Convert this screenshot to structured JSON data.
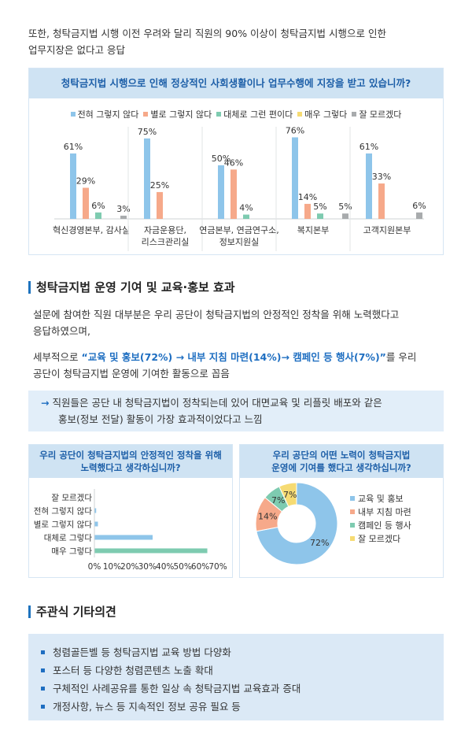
{
  "intro": {
    "line1": "또한, 청탁금지법 시행 이전 우려와 달리 직원의 90% 이상이 청탁금지법 시행으로 인한",
    "line2": "업무지장은 없다고 응답"
  },
  "colors": {
    "blue": "#8ec5ea",
    "orange": "#f6a98a",
    "green": "#7ecbb0",
    "yellow": "#f6db73",
    "gray": "#a8abad",
    "accent": "#1e6ec1",
    "box_title_bg": "#cfe3f3"
  },
  "chart1": {
    "chart_data": {
      "type": "bar",
      "title": "청탁금지법 시행으로 인해 정상적인 사회생활이나 업무수행에 지장을 받고 있습니까?",
      "categories": [
        "혁신경영본부, 감사실",
        "자금운용단,\n리스크관리실",
        "연금본부, 연금연구소,\n정보지원실",
        "복지본부",
        "고객지원본부"
      ],
      "series": [
        {
          "name": "전혀 그렇지 않다",
          "values": [
            61,
            75,
            50,
            76,
            61
          ],
          "labels": [
            "61%",
            "75%",
            "50%",
            "76%",
            "61%"
          ]
        },
        {
          "name": "별로 그렇지 않다",
          "values": [
            29,
            25,
            46,
            14,
            33
          ],
          "labels": [
            "29%",
            "25%",
            "46%",
            "14%",
            "33%"
          ]
        },
        {
          "name": "대체로 그런 편이다",
          "values": [
            6,
            0,
            4,
            5,
            0
          ],
          "labels": [
            "6%",
            "",
            "4%",
            "5%",
            ""
          ]
        },
        {
          "name": "매우 그렇다",
          "values": [
            0,
            0,
            0,
            0,
            0
          ],
          "labels": [
            "",
            "",
            "",
            "",
            ""
          ]
        },
        {
          "name": "잘 모르겠다",
          "values": [
            3,
            0,
            0,
            5,
            6
          ],
          "labels": [
            "3%",
            "",
            "",
            "5%",
            "6%"
          ]
        }
      ],
      "ylim": [
        0,
        80
      ]
    }
  },
  "section2": {
    "title": "청탁금지법 운영 기여 및 교육·홍보 효과",
    "para1_line1": "설문에 참여한 직원 대부분은 우리 공단이 청탁금지법의 안정적인 정착을 위해 노력했다고",
    "para1_line2": "응답하였으며,",
    "para2_prefix": "세부적으로 ",
    "para2_highlight": "“교육 및 홍보(72%) → 내부 지침 마련(14%)→ 캠페인 등 행사(7%)”",
    "para2_suffix": "를 우리",
    "para2_line2": "공단이 청탁금지법 운영에 기여한 활동으로 꼽음",
    "callout_arrow": "→",
    "callout_line1": "직원들은 공단 내 청탁금지법이 정착되는데 있어 대면교육 및 리플릿 배포와 같은",
    "callout_line2": "홍보(정보 전달) 활동이 가장 효과적이었다고 느낌"
  },
  "chart2": {
    "title_line1": "우리 공단이 청탁금지법의 안정적인 정착을 위해",
    "title_line2": "노력했다고 생각하십니까?",
    "chart_data": {
      "type": "bar",
      "orientation": "horizontal",
      "categories": [
        "잘 모르겠다",
        "전혀 그렇지 않다",
        "별로 그렇지 않다",
        "대체로 그렇다",
        "매우 그렇다"
      ],
      "values": [
        0,
        1,
        2,
        33,
        64
      ],
      "xlim": [
        0,
        70
      ],
      "xticks": [
        "0%",
        "10%",
        "20%",
        "30%",
        "40%",
        "50%",
        "60%",
        "70%"
      ]
    }
  },
  "chart3": {
    "title_line1": "우리 공단의 어떤 노력이 청탁금지법",
    "title_line2": "운영에 기여를 했다고 생각하십니까?",
    "chart_data": {
      "type": "pie",
      "donut": true,
      "labels": [
        "교육 및 홍보",
        "내부 지침 마련",
        "캠페인 등 행사",
        "잘 모르겠다"
      ],
      "values": [
        72,
        14,
        7,
        7
      ],
      "value_labels": [
        "72%",
        "14%",
        "7%",
        "7%"
      ]
    }
  },
  "section3": {
    "title": "주관식 기타의견",
    "items": [
      "청렴골든벨 등 청탁금지법 교육 방법 다양화",
      "포스터 등 다양한 청렴콘텐츠 노출 확대",
      "구체적인 사례공유를 통한 일상 속 청탁금지법 교육효과 증대",
      "개정사항, 뉴스 등 지속적인 정보 공유 필요 등"
    ]
  }
}
